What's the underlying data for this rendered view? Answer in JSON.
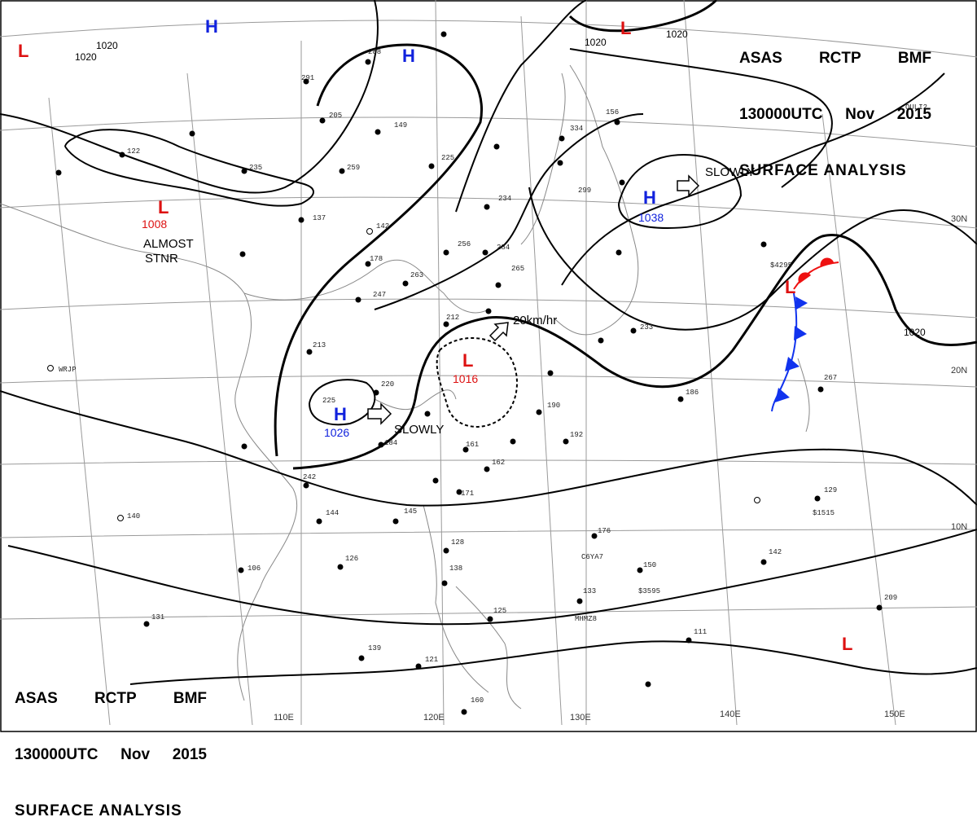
{
  "header": {
    "line1": [
      "ASAS",
      "RCTP",
      "BMF"
    ],
    "line2": [
      "130000UTC",
      "Nov",
      "2015"
    ],
    "line3": "SURFACE ANALYSIS"
  },
  "colors": {
    "high": "#1122dd",
    "low": "#dd1111",
    "warm_front": "#ee1111",
    "cold_front": "#1133ee",
    "isobar": "#000000",
    "grid": "#9a9a9a",
    "coast": "#888888"
  },
  "pressure_systems": [
    {
      "type": "H",
      "value": ""
    },
    {
      "type": "H",
      "value": ""
    },
    {
      "type": "H",
      "value": "1038"
    },
    {
      "type": "H",
      "value": "1026"
    },
    {
      "type": "L",
      "value": ""
    },
    {
      "type": "L",
      "value": ""
    },
    {
      "type": "L",
      "value": "1008"
    },
    {
      "type": "L",
      "value": "1016"
    },
    {
      "type": "L",
      "value": ""
    },
    {
      "type": "L",
      "value": ""
    }
  ],
  "isobar_labels": [
    "1020",
    "1020",
    "1020",
    "1020",
    "1020"
  ],
  "annotations": [
    "SLOWLY",
    "SLOWLY",
    "20km/hr",
    "ALMOST",
    "STNR"
  ],
  "longitude_labels": [
    "110E",
    "120E",
    "130E",
    "140E",
    "150E"
  ],
  "latitude_labels": [
    "30N",
    "20N",
    "10N"
  ],
  "station_labels": [
    "190",
    "192",
    "161",
    "162",
    "171",
    "145",
    "144",
    "126",
    "106",
    "131",
    "139",
    "128",
    "138",
    "125",
    "121",
    "160",
    "176",
    "150",
    "133",
    "142",
    "129",
    "111",
    "209",
    "186",
    "267",
    "233",
    "220",
    "184",
    "242",
    "225",
    "213",
    "247",
    "263",
    "256",
    "284",
    "265",
    "212",
    "178",
    "142",
    "137",
    "259",
    "235",
    "205",
    "149",
    "225",
    "234",
    "288",
    "291",
    "334",
    "299",
    "156",
    "122",
    "140",
    "WRJP",
    "C6YA7",
    "MHMZ8",
    "$1515",
    "$3595",
    "$4295",
    "OULI2"
  ]
}
